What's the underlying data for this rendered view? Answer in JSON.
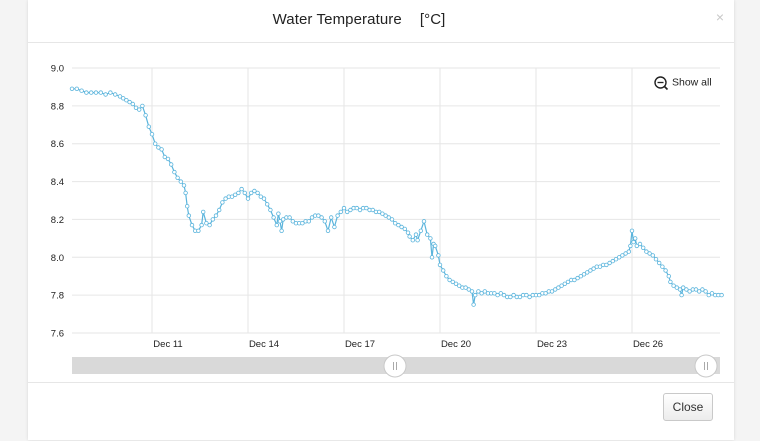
{
  "dialog": {
    "title": "Water Temperature",
    "unit": "[°C]",
    "show_all_label": "Show all",
    "close_label": "Close",
    "close_icon": "×"
  },
  "colors": {
    "line": "#5ab4dc",
    "grid": "#e6e6e6",
    "navigator_track": "#d9d9d9",
    "handle_border": "#c9c9c9"
  },
  "navigator": {
    "selection_start_fraction": 0.5,
    "selection_end_fraction": 1.0
  },
  "chart_data": {
    "type": "line",
    "title": "Water Temperature",
    "ylabel": "[°C]",
    "ylim": [
      7.6,
      9.0
    ],
    "yticks": [
      "9.0",
      "8.8",
      "8.6",
      "8.4",
      "8.2",
      "8.0",
      "7.8",
      "7.6"
    ],
    "xticks": [
      "Dec 11",
      "Dec 14",
      "Dec 17",
      "Dec 20",
      "Dec 23",
      "Dec 26"
    ],
    "grid": true,
    "x_day_range": [
      8.5,
      28.8
    ],
    "points": [
      [
        8.5,
        8.89
      ],
      [
        8.65,
        8.89
      ],
      [
        8.8,
        8.88
      ],
      [
        8.95,
        8.87
      ],
      [
        9.1,
        8.87
      ],
      [
        9.25,
        8.87
      ],
      [
        9.4,
        8.87
      ],
      [
        9.55,
        8.86
      ],
      [
        9.7,
        8.87
      ],
      [
        9.85,
        8.86
      ],
      [
        10.0,
        8.85
      ],
      [
        10.1,
        8.84
      ],
      [
        10.2,
        8.83
      ],
      [
        10.3,
        8.82
      ],
      [
        10.4,
        8.81
      ],
      [
        10.5,
        8.79
      ],
      [
        10.6,
        8.78
      ],
      [
        10.7,
        8.8
      ],
      [
        10.8,
        8.75
      ],
      [
        10.9,
        8.69
      ],
      [
        11.0,
        8.65
      ],
      [
        11.1,
        8.6
      ],
      [
        11.2,
        8.58
      ],
      [
        11.3,
        8.57
      ],
      [
        11.4,
        8.53
      ],
      [
        11.5,
        8.52
      ],
      [
        11.6,
        8.49
      ],
      [
        11.7,
        8.45
      ],
      [
        11.8,
        8.42
      ],
      [
        11.9,
        8.4
      ],
      [
        12.0,
        8.38
      ],
      [
        12.05,
        8.34
      ],
      [
        12.1,
        8.27
      ],
      [
        12.15,
        8.22
      ],
      [
        12.25,
        8.17
      ],
      [
        12.35,
        8.14
      ],
      [
        12.45,
        8.14
      ],
      [
        12.55,
        8.17
      ],
      [
        12.6,
        8.24
      ],
      [
        12.7,
        8.18
      ],
      [
        12.8,
        8.17
      ],
      [
        12.9,
        8.2
      ],
      [
        13.0,
        8.22
      ],
      [
        13.1,
        8.25
      ],
      [
        13.2,
        8.29
      ],
      [
        13.3,
        8.31
      ],
      [
        13.4,
        8.32
      ],
      [
        13.5,
        8.32
      ],
      [
        13.6,
        8.33
      ],
      [
        13.7,
        8.34
      ],
      [
        13.8,
        8.36
      ],
      [
        13.9,
        8.34
      ],
      [
        14.0,
        8.31
      ],
      [
        14.1,
        8.34
      ],
      [
        14.2,
        8.35
      ],
      [
        14.3,
        8.34
      ],
      [
        14.4,
        8.32
      ],
      [
        14.5,
        8.31
      ],
      [
        14.6,
        8.28
      ],
      [
        14.7,
        8.25
      ],
      [
        14.8,
        8.21
      ],
      [
        14.9,
        8.17
      ],
      [
        14.95,
        8.23
      ],
      [
        15.0,
        8.19
      ],
      [
        15.05,
        8.14
      ],
      [
        15.1,
        8.2
      ],
      [
        15.2,
        8.21
      ],
      [
        15.3,
        8.21
      ],
      [
        15.4,
        8.19
      ],
      [
        15.5,
        8.18
      ],
      [
        15.6,
        8.18
      ],
      [
        15.7,
        8.18
      ],
      [
        15.8,
        8.19
      ],
      [
        15.9,
        8.19
      ],
      [
        16.0,
        8.21
      ],
      [
        16.1,
        8.22
      ],
      [
        16.2,
        8.22
      ],
      [
        16.3,
        8.21
      ],
      [
        16.4,
        8.19
      ],
      [
        16.5,
        8.14
      ],
      [
        16.6,
        8.21
      ],
      [
        16.7,
        8.16
      ],
      [
        16.8,
        8.22
      ],
      [
        16.9,
        8.24
      ],
      [
        17.0,
        8.26
      ],
      [
        17.1,
        8.24
      ],
      [
        17.2,
        8.25
      ],
      [
        17.3,
        8.26
      ],
      [
        17.4,
        8.26
      ],
      [
        17.5,
        8.25
      ],
      [
        17.6,
        8.26
      ],
      [
        17.7,
        8.26
      ],
      [
        17.8,
        8.25
      ],
      [
        17.9,
        8.25
      ],
      [
        18.0,
        8.24
      ],
      [
        18.1,
        8.24
      ],
      [
        18.2,
        8.23
      ],
      [
        18.3,
        8.22
      ],
      [
        18.4,
        8.21
      ],
      [
        18.5,
        8.2
      ],
      [
        18.6,
        8.18
      ],
      [
        18.7,
        8.17
      ],
      [
        18.8,
        8.16
      ],
      [
        18.9,
        8.15
      ],
      [
        19.0,
        8.13
      ],
      [
        19.05,
        8.11
      ],
      [
        19.15,
        8.09
      ],
      [
        19.25,
        8.12
      ],
      [
        19.3,
        8.09
      ],
      [
        19.4,
        8.14
      ],
      [
        19.5,
        8.19
      ],
      [
        19.6,
        8.12
      ],
      [
        19.7,
        8.1
      ],
      [
        19.75,
        8.0
      ],
      [
        19.8,
        8.07
      ],
      [
        19.85,
        8.06
      ],
      [
        19.95,
        8.01
      ],
      [
        20.0,
        7.96
      ],
      [
        20.1,
        7.93
      ],
      [
        20.2,
        7.9
      ],
      [
        20.3,
        7.88
      ],
      [
        20.4,
        7.87
      ],
      [
        20.5,
        7.86
      ],
      [
        20.6,
        7.85
      ],
      [
        20.7,
        7.84
      ],
      [
        20.8,
        7.84
      ],
      [
        20.9,
        7.83
      ],
      [
        21.0,
        7.82
      ],
      [
        21.05,
        7.75
      ],
      [
        21.1,
        7.8
      ],
      [
        21.2,
        7.82
      ],
      [
        21.3,
        7.81
      ],
      [
        21.4,
        7.82
      ],
      [
        21.5,
        7.81
      ],
      [
        21.6,
        7.81
      ],
      [
        21.7,
        7.81
      ],
      [
        21.8,
        7.8
      ],
      [
        21.9,
        7.81
      ],
      [
        22.0,
        7.8
      ],
      [
        22.1,
        7.79
      ],
      [
        22.2,
        7.79
      ],
      [
        22.3,
        7.8
      ],
      [
        22.4,
        7.79
      ],
      [
        22.5,
        7.79
      ],
      [
        22.6,
        7.8
      ],
      [
        22.7,
        7.8
      ],
      [
        22.8,
        7.79
      ],
      [
        22.9,
        7.8
      ],
      [
        23.0,
        7.8
      ],
      [
        23.1,
        7.8
      ],
      [
        23.2,
        7.81
      ],
      [
        23.3,
        7.81
      ],
      [
        23.4,
        7.82
      ],
      [
        23.5,
        7.82
      ],
      [
        23.6,
        7.83
      ],
      [
        23.7,
        7.84
      ],
      [
        23.8,
        7.85
      ],
      [
        23.9,
        7.86
      ],
      [
        24.0,
        7.87
      ],
      [
        24.1,
        7.88
      ],
      [
        24.2,
        7.88
      ],
      [
        24.3,
        7.89
      ],
      [
        24.4,
        7.9
      ],
      [
        24.5,
        7.91
      ],
      [
        24.6,
        7.92
      ],
      [
        24.7,
        7.93
      ],
      [
        24.8,
        7.94
      ],
      [
        24.9,
        7.95
      ],
      [
        25.0,
        7.95
      ],
      [
        25.1,
        7.96
      ],
      [
        25.2,
        7.96
      ],
      [
        25.3,
        7.97
      ],
      [
        25.4,
        7.98
      ],
      [
        25.5,
        7.99
      ],
      [
        25.6,
        8.0
      ],
      [
        25.7,
        8.01
      ],
      [
        25.8,
        8.02
      ],
      [
        25.9,
        8.03
      ],
      [
        25.95,
        8.06
      ],
      [
        26.0,
        8.14
      ],
      [
        26.05,
        8.08
      ],
      [
        26.1,
        8.1
      ],
      [
        26.15,
        8.06
      ],
      [
        26.25,
        8.07
      ],
      [
        26.35,
        8.05
      ],
      [
        26.45,
        8.03
      ],
      [
        26.55,
        8.02
      ],
      [
        26.65,
        8.01
      ],
      [
        26.75,
        7.99
      ],
      [
        26.85,
        7.97
      ],
      [
        26.95,
        7.95
      ],
      [
        27.05,
        7.93
      ],
      [
        27.15,
        7.9
      ],
      [
        27.2,
        7.87
      ],
      [
        27.3,
        7.85
      ],
      [
        27.4,
        7.84
      ],
      [
        27.5,
        7.83
      ],
      [
        27.55,
        7.8
      ],
      [
        27.6,
        7.84
      ],
      [
        27.7,
        7.83
      ],
      [
        27.8,
        7.82
      ],
      [
        27.9,
        7.83
      ],
      [
        28.0,
        7.83
      ],
      [
        28.1,
        7.82
      ],
      [
        28.2,
        7.83
      ],
      [
        28.3,
        7.82
      ],
      [
        28.4,
        7.8
      ],
      [
        28.5,
        7.81
      ],
      [
        28.6,
        7.8
      ],
      [
        28.7,
        7.8
      ],
      [
        28.8,
        7.8
      ]
    ]
  }
}
